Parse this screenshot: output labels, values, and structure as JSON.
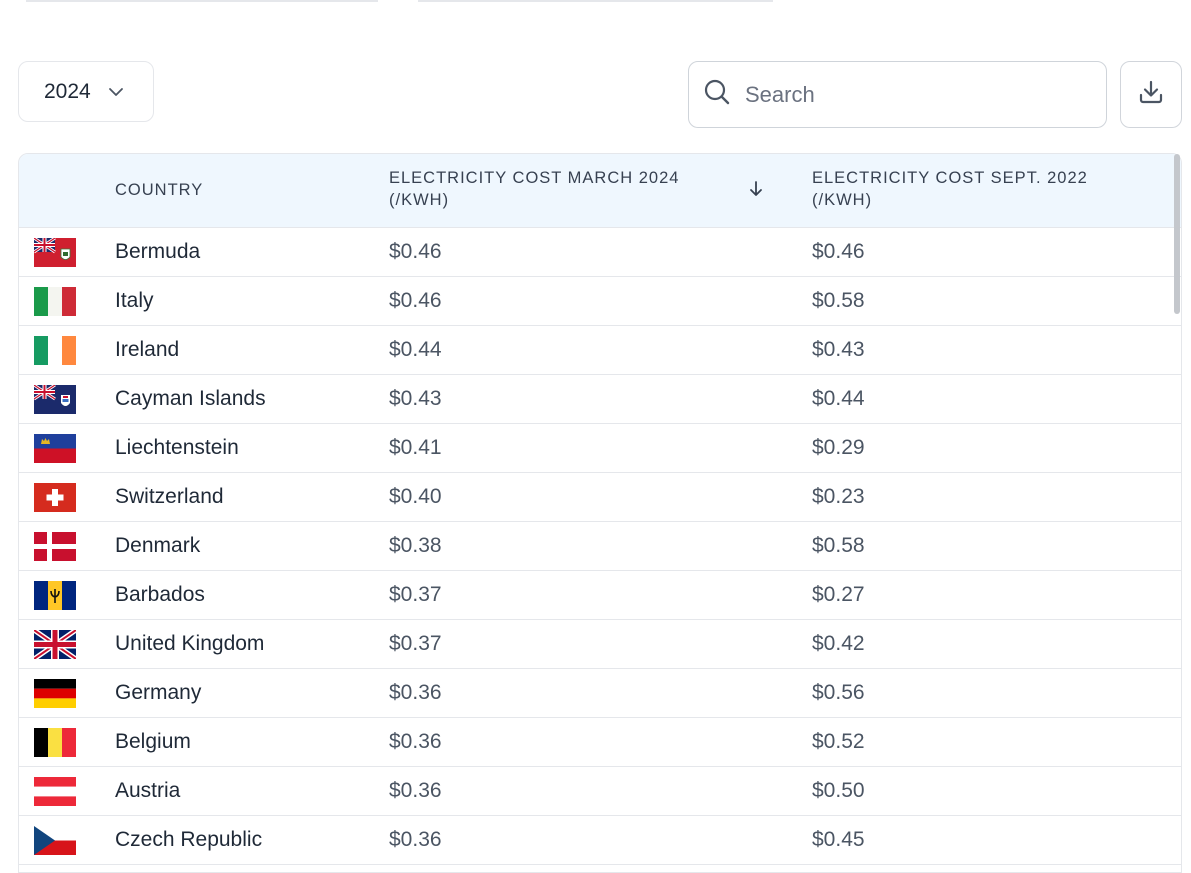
{
  "filters": {
    "year": "2024",
    "search_placeholder": "Search"
  },
  "table": {
    "headers": {
      "country": "COUNTRY",
      "march_line1": "ELECTRICITY COST MARCH 2024",
      "march_line2": "(/KWH)",
      "sept_line1": "ELECTRICITY COST SEPT. 2022",
      "sept_line2": "(/KWH)"
    },
    "rows": [
      {
        "country": "Bermuda",
        "march_2024": "$0.46",
        "sept_2022": "$0.46",
        "flag_icon": "bermuda-flag-icon"
      },
      {
        "country": "Italy",
        "march_2024": "$0.46",
        "sept_2022": "$0.58",
        "flag_icon": "italy-flag-icon"
      },
      {
        "country": "Ireland",
        "march_2024": "$0.44",
        "sept_2022": "$0.43",
        "flag_icon": "ireland-flag-icon"
      },
      {
        "country": "Cayman Islands",
        "march_2024": "$0.43",
        "sept_2022": "$0.44",
        "flag_icon": "cayman-islands-flag-icon"
      },
      {
        "country": "Liechtenstein",
        "march_2024": "$0.41",
        "sept_2022": "$0.29",
        "flag_icon": "liechtenstein-flag-icon"
      },
      {
        "country": "Switzerland",
        "march_2024": "$0.40",
        "sept_2022": "$0.23",
        "flag_icon": "switzerland-flag-icon"
      },
      {
        "country": "Denmark",
        "march_2024": "$0.38",
        "sept_2022": "$0.58",
        "flag_icon": "denmark-flag-icon"
      },
      {
        "country": "Barbados",
        "march_2024": "$0.37",
        "sept_2022": "$0.27",
        "flag_icon": "barbados-flag-icon"
      },
      {
        "country": "United Kingdom",
        "march_2024": "$0.37",
        "sept_2022": "$0.42",
        "flag_icon": "united-kingdom-flag-icon"
      },
      {
        "country": "Germany",
        "march_2024": "$0.36",
        "sept_2022": "$0.56",
        "flag_icon": "germany-flag-icon"
      },
      {
        "country": "Belgium",
        "march_2024": "$0.36",
        "sept_2022": "$0.52",
        "flag_icon": "belgium-flag-icon"
      },
      {
        "country": "Austria",
        "march_2024": "$0.36",
        "sept_2022": "$0.50",
        "flag_icon": "austria-flag-icon"
      },
      {
        "country": "Czech Republic",
        "march_2024": "$0.36",
        "sept_2022": "$0.45",
        "flag_icon": "czech-republic-flag-icon"
      }
    ]
  },
  "icons": {
    "year_chevron": "chevron-down-icon",
    "search": "search-icon",
    "download": "download-icon",
    "sort": "arrow-down-icon"
  },
  "colors": {
    "header_bg": "#eff7fe",
    "border": "#e5e7eb"
  }
}
